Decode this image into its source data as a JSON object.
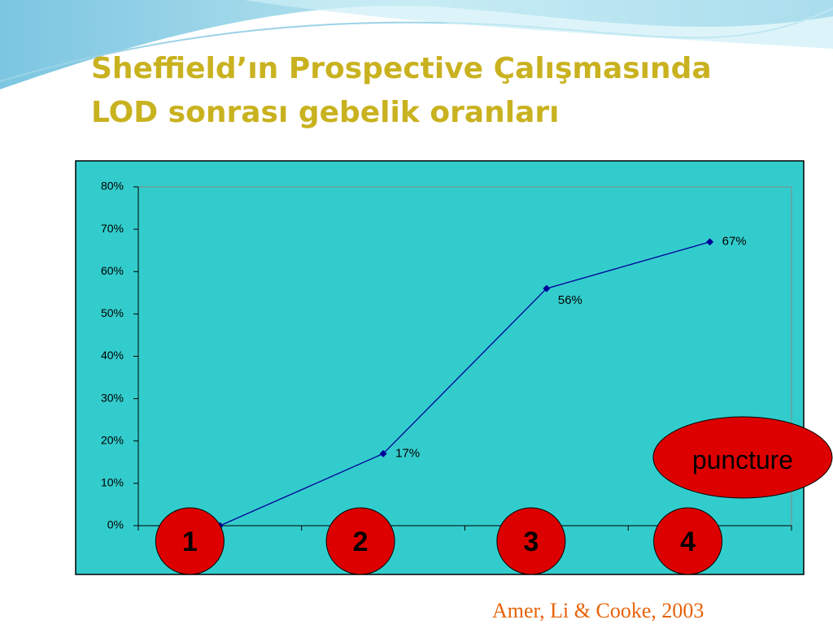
{
  "chart_data": {
    "type": "line",
    "title": [
      "Sheffield’ın Prospective Çalışmasında",
      "LOD sonrası gebelik oranları"
    ],
    "categories": [
      "1",
      "2",
      "3",
      "4"
    ],
    "values": [
      0,
      17,
      56,
      67
    ],
    "value_labels": [
      null,
      "17%",
      "56%",
      "67%"
    ],
    "color": "#000099",
    "ylim": [
      0,
      80
    ],
    "yticks": [
      {
        "value": 0,
        "label": "0%"
      },
      {
        "value": 10,
        "label": "10%"
      },
      {
        "value": 20,
        "label": "20%"
      },
      {
        "value": 30,
        "label": "30%"
      },
      {
        "value": 40,
        "label": "40%"
      },
      {
        "value": 50,
        "label": "50%"
      },
      {
        "value": 60,
        "label": "60%"
      },
      {
        "value": 70,
        "label": "70%"
      },
      {
        "value": 80,
        "label": "80%"
      }
    ],
    "grid": false,
    "annotation": "puncture",
    "source": "Amer, Li & Cooke, 2003"
  }
}
